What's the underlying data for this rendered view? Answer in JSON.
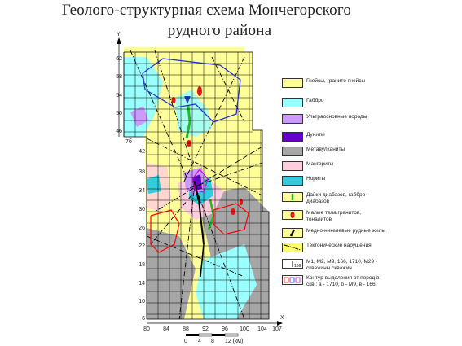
{
  "title": {
    "line1": "Геолого-структурная схема Мончегорского",
    "line2": "рудного района"
  },
  "axes": {
    "y_letter": "Y",
    "x_letter": "X",
    "y_ticks": [
      "62",
      "58",
      "54",
      "50",
      "46",
      "42",
      "38",
      "34",
      "30",
      "26",
      "22",
      "18",
      "14",
      "10",
      "6"
    ],
    "x_ticks": [
      "80",
      "84",
      "88",
      "92",
      "96",
      "100",
      "104",
      "107"
    ],
    "side_label": "7б"
  },
  "scale": {
    "ticks": [
      "0",
      "4",
      "8",
      "12 (км)"
    ]
  },
  "legend": [
    {
      "color": "#ffff99",
      "label": "Гнейсы, гранито-гнейсы"
    },
    {
      "color": "#99ffff",
      "label": "Габбро"
    },
    {
      "color": "#cc99ff",
      "label": "Ультраосновные породы"
    },
    {
      "color": "#6600cc",
      "label": "Дуниты"
    },
    {
      "color": "#a6a6a6",
      "label": "Метавулканиты"
    },
    {
      "color": "#ffccdd",
      "label": "Мангериты"
    },
    {
      "color": "#33ccdd",
      "label": "Нориты"
    },
    {
      "color": "#ffff99",
      "label": "Дайки диабазов, габбро-диабазов"
    },
    {
      "color": "#ffff99",
      "label": "Малые тела гранитов, тоналитов"
    },
    {
      "color": "#ffff99",
      "label": "Медно-никелевые рудные жилы"
    },
    {
      "color": "#ffff66",
      "label": "Тектонические нарушения"
    },
    {
      "color": "#ffffff",
      "label": "M1, M2, M9, 166, 1710, M29 - скважины скважин"
    },
    {
      "color": "#ffffff",
      "label": "Контур выделения от пород в скв.: а - 1710, б - М9, в - 166"
    }
  ],
  "colors": {
    "gneiss": "#ffff99",
    "gabbro": "#99ffff",
    "ultramafic": "#cc99ff",
    "dunite": "#6600cc",
    "metavolcanic": "#a6a6a6",
    "mangerite": "#ffccdd",
    "norite": "#33ccdd",
    "grid": "#000000",
    "fault": "#000000",
    "contour_red": "#ff0000",
    "contour_blue": "#2233cc"
  }
}
